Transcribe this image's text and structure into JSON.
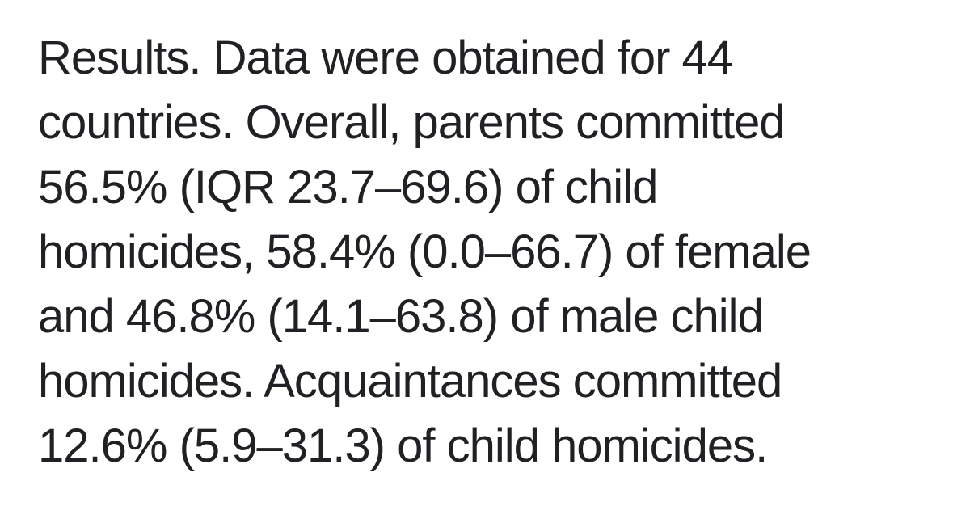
{
  "page": {
    "background_color": "#ffffff",
    "text_color": "#202124"
  },
  "abstract": {
    "section_label": "Results.",
    "lines": [
      "Results. Data were obtained for 44",
      "countries. Overall, parents committed",
      "56.5% (IQR 23.7–69.6) of child",
      "homicides, 58.4% (0.0–66.7) of female",
      "and 46.8% (14.1–63.8) of male child",
      "homicides. Acquaintances committed",
      "12.6% (5.9–31.3) of child homicides."
    ]
  }
}
